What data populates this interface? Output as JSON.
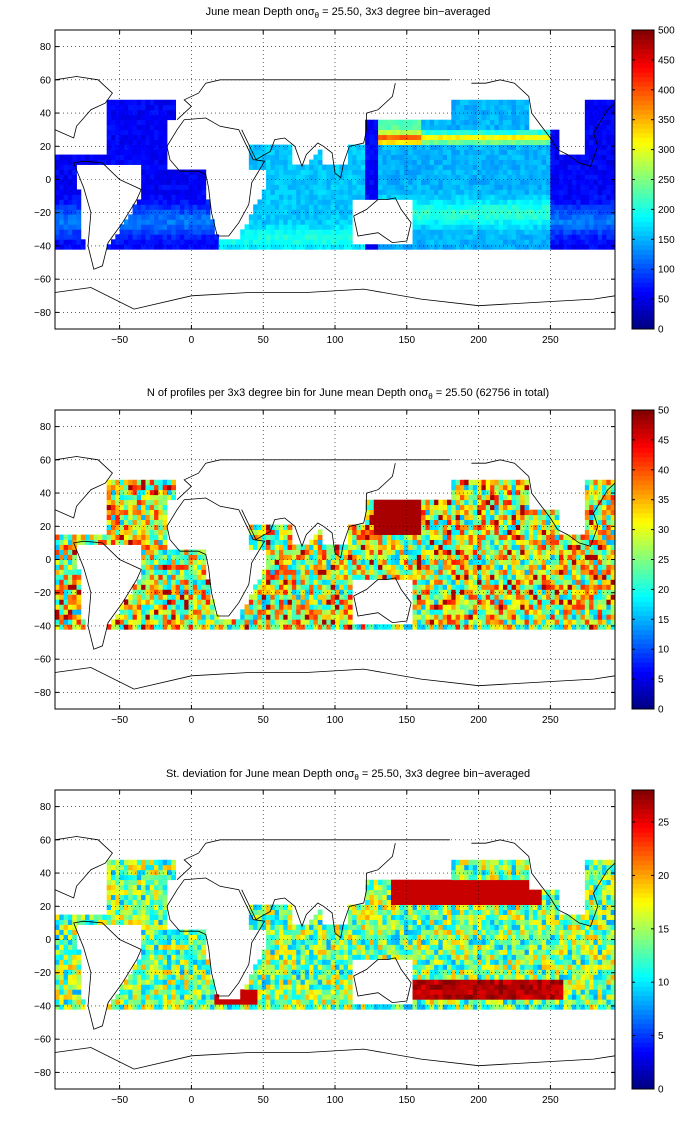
{
  "chart_data": [
    {
      "type": "heatmap",
      "title_prefix": "June mean Depth on",
      "title_symbol": "σ",
      "title_subscript": "θ",
      "title_suffix": " = 25.50, 3x3 degree bin−averaged",
      "x_ticks": [
        "−50",
        "0",
        "50",
        "100",
        "150",
        "200",
        "250"
      ],
      "y_ticks": [
        "80",
        "60",
        "40",
        "20",
        "0",
        "−20",
        "−40",
        "−60",
        "−80"
      ],
      "x_tick_values": [
        -50,
        0,
        50,
        100,
        150,
        200,
        250
      ],
      "y_tick_values": [
        80,
        60,
        40,
        20,
        0,
        -20,
        -40,
        -60,
        -80
      ],
      "xlim": [
        -95,
        295
      ],
      "ylim": [
        -90,
        90
      ],
      "colorbar_ticks": [
        "500",
        "450",
        "400",
        "350",
        "300",
        "250",
        "200",
        "150",
        "100",
        "50",
        "0"
      ],
      "colorbar_tick_values": [
        500,
        450,
        400,
        350,
        300,
        250,
        200,
        150,
        100,
        50,
        0
      ],
      "clim": [
        0,
        500
      ],
      "colormap": "jet",
      "grid": "dotted",
      "field": "depth"
    },
    {
      "type": "heatmap",
      "title_prefix": "N of profiles per 3x3 degree bin for June mean Depth on",
      "title_symbol": "σ",
      "title_subscript": "θ",
      "title_suffix": " = 25.50 (62756 in total)",
      "x_ticks": [
        "−50",
        "0",
        "50",
        "100",
        "150",
        "200",
        "250"
      ],
      "y_ticks": [
        "80",
        "60",
        "40",
        "20",
        "0",
        "−20",
        "−40",
        "−60",
        "−80"
      ],
      "x_tick_values": [
        -50,
        0,
        50,
        100,
        150,
        200,
        250
      ],
      "y_tick_values": [
        80,
        60,
        40,
        20,
        0,
        -20,
        -40,
        -60,
        -80
      ],
      "xlim": [
        -95,
        295
      ],
      "ylim": [
        -90,
        90
      ],
      "colorbar_ticks": [
        "50",
        "45",
        "40",
        "35",
        "30",
        "25",
        "20",
        "15",
        "10",
        "5",
        "0"
      ],
      "colorbar_tick_values": [
        50,
        45,
        40,
        35,
        30,
        25,
        20,
        15,
        10,
        5,
        0
      ],
      "clim": [
        0,
        50
      ],
      "colormap": "jet",
      "grid": "dotted",
      "field": "count"
    },
    {
      "type": "heatmap",
      "title_prefix": "St. deviation for June mean Depth on",
      "title_symbol": "σ",
      "title_subscript": "θ",
      "title_suffix": " = 25.50, 3x3 degree bin−averaged",
      "x_ticks": [
        "−50",
        "0",
        "50",
        "100",
        "150",
        "200",
        "250"
      ],
      "y_ticks": [
        "80",
        "60",
        "40",
        "20",
        "0",
        "−20",
        "−40",
        "−60",
        "−80"
      ],
      "x_tick_values": [
        -50,
        0,
        50,
        100,
        150,
        200,
        250
      ],
      "y_tick_values": [
        80,
        60,
        40,
        20,
        0,
        -20,
        -40,
        -60,
        -80
      ],
      "xlim": [
        -95,
        295
      ],
      "ylim": [
        -90,
        90
      ],
      "colorbar_ticks": [
        "25",
        "20",
        "15",
        "10",
        "5",
        "0"
      ],
      "colorbar_tick_values": [
        25,
        20,
        15,
        10,
        5,
        0
      ],
      "clim": [
        0,
        28
      ],
      "colormap": "jet",
      "grid": "dotted",
      "field": "stdev"
    }
  ]
}
